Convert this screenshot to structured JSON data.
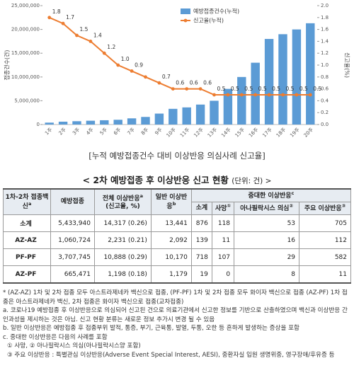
{
  "chart_data": {
    "type": "combo",
    "ylabel": "접종건수(건)",
    "y2label": "신고율(%)",
    "categories": [
      "1주",
      "2주",
      "3주",
      "4주",
      "5주",
      "6주",
      "7주",
      "8주",
      "9주",
      "10주",
      "11주",
      "12주",
      "13주",
      "14주",
      "15주",
      "16주",
      "17주",
      "18주",
      "19주",
      "20주"
    ],
    "series": [
      {
        "name": "예방접종건수(누적)",
        "color": "#5b9bd5",
        "type": "bar",
        "values": [
          400000,
          600000,
          700000,
          800000,
          900000,
          1000000,
          1300000,
          1600000,
          2300000,
          3300000,
          3600000,
          4200000,
          5000000,
          7500000,
          10000000,
          13000000,
          18000000,
          19000000,
          20000000,
          21300000
        ]
      },
      {
        "name": "신고율(누적)",
        "color": "#ed7d31",
        "type": "line",
        "axis": "y2",
        "values": [
          1.8,
          1.7,
          1.5,
          1.4,
          1.2,
          1.0,
          0.9,
          0.8,
          0.7,
          0.6,
          0.6,
          0.6,
          0.5,
          0.5,
          0.5,
          0.5,
          0.5,
          0.5,
          0.5,
          0.5
        ],
        "value_labels": [
          "1.8",
          "1.7",
          "1.5",
          "1.4",
          "1.2",
          "1.0",
          "0.9",
          null,
          "0.7",
          "0.6",
          "0.6",
          "0.6",
          "0.5",
          "0.5",
          "0.5",
          "0.5",
          "0.5",
          "0.5",
          "0.5",
          "0.5"
        ]
      }
    ],
    "ylim": [
      0,
      25000000
    ],
    "yticks": [
      0,
      {
        "value": 5000000,
        "label": "5,000,000"
      },
      {
        "value": 10000000,
        "label": "10,000,000"
      },
      {
        "value": 15000000,
        "label": "15,000,000"
      },
      {
        "value": 20000000,
        "label": "20,000,000"
      },
      {
        "value": 25000000,
        "label": "25,000,000"
      }
    ],
    "y2lim": [
      0,
      2
    ],
    "y2ticks": [
      {
        "value": 0,
        "label": "0.0"
      },
      0.2,
      0.4,
      0.6,
      0.8,
      {
        "value": 1,
        "label": "1.0"
      },
      1.2,
      1.4,
      1.6,
      1.8,
      {
        "value": 2,
        "label": "2.0"
      }
    ],
    "legend": "top-right"
  },
  "caption": "[누적 예방접종건수 대비 이상반응 의심사례 신고율]",
  "section_title": {
    "text": "< 2차 예방접종 후 이상반응 신고 현황",
    "unit": "(단위: 건) >"
  },
  "table": {
    "header": {
      "vaccine": {
        "text": "1차-2차 접종백신",
        "sup": "a"
      },
      "doses": "예방접종",
      "total": {
        "text": "전체 이상반응",
        "sup": "a",
        "sub": "(신고율, %)"
      },
      "general": {
        "text": "일반 이상반응",
        "sup": "b"
      },
      "serious": {
        "text": "중대한 이상반응",
        "sup": "c"
      },
      "serious_cols": [
        {
          "text": "소계"
        },
        {
          "text": "사망",
          "sup": "①"
        },
        {
          "text": "아나필락시스 의심",
          "sup": "②"
        },
        {
          "text": "주요 이상반응",
          "sup": "③"
        }
      ]
    },
    "rows": [
      [
        "소계",
        "5,433,940",
        "14,317 (0.26)",
        "13,441",
        "876",
        "118",
        "53",
        "705"
      ],
      [
        "AZ-AZ",
        "1,060,724",
        "2,231 (0.21)",
        "2,092",
        "139",
        "11",
        "16",
        "112"
      ],
      [
        "PF-PF",
        "3,707,745",
        "10,888 (0.29)",
        "10,170",
        "718",
        "107",
        "29",
        "582"
      ],
      [
        "AZ-PF",
        "665,471",
        "1,198 (0.18)",
        "1,179",
        "19",
        "0",
        "8",
        "11"
      ]
    ]
  },
  "footnotes": [
    "* (AZ-AZ) 1차 및 2차 접종 모두 아스트라제네카 백신으로 접종, (PF-PF) 1차 및 2차 접종 모두 화이자 백신으로 접종 (AZ-PF) 1차 접종은 아스트라제네카 백신, 2차 접종은 화이자 백신으로 접종(교차접종)",
    "a. 코로나19 예방접종 후 이상반응으로 의심되어 신고된 건으로 의료기관에서 신고한 정보를 기반으로 산출하였으며 백신과 이상반응 간 인과성을 제시하는 것은 아님. 신고 현황 분류는 새로운 정보 추가시 변경 될 수 있음",
    "b. 일반 이상반응은 예방접종 후 접종부위 발적, 통증, 부기, 근육통, 발열, 두통, 오한 등 흔하게 발생하는 증상을 포함",
    "c. 중대한 이상반응은 다음의 사례를 포함",
    "① 사망, ② 아나필락시스 의심(아나필락시스양 포함)",
    "③ 주요 이상반응 : 특별관심 이상반응(Adverse Event Special Interest, AESI), 중환자실 입원 생명위중, 영구장애/후유증 등"
  ]
}
